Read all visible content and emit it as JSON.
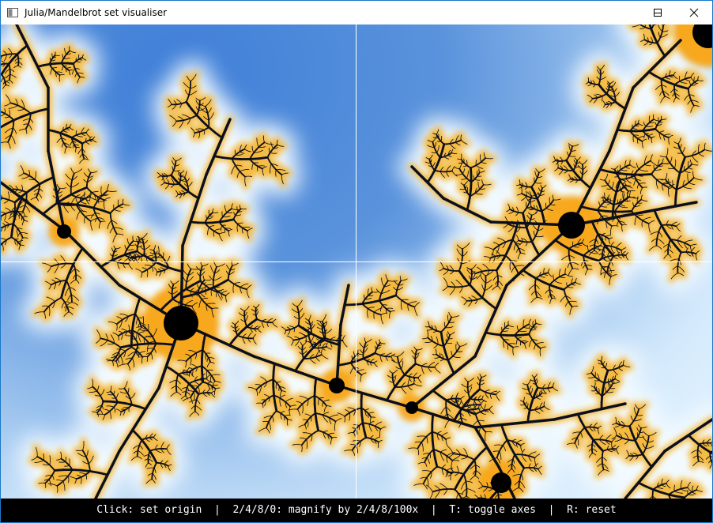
{
  "window": {
    "title": "Julia/Mandelbrot set visualiser"
  },
  "status_bar": {
    "text": "Click: set origin  |  2/4/8/0: magnify by 2/4/8/100x  |  T: toggle axes  |  R: reset"
  }
}
